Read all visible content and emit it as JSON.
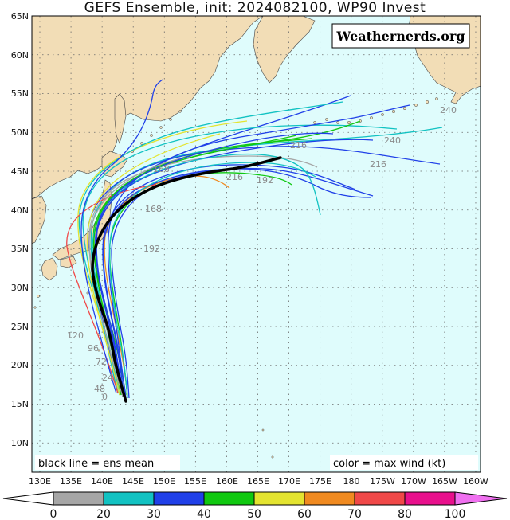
{
  "title": "GEFS Ensemble, init: 2024082100, WP90 Invest",
  "brand": "Weathernerds.org",
  "legend_left": "black line = ens mean",
  "legend_right": "color = max wind (kt)",
  "lat_labels": [
    "65N",
    "60N",
    "55N",
    "50N",
    "45N",
    "40N",
    "35N",
    "30N",
    "25N",
    "20N",
    "15N",
    "10N"
  ],
  "lon_labels": [
    "130E",
    "135E",
    "140E",
    "145E",
    "150E",
    "155E",
    "160E",
    "165E",
    "170E",
    "175E",
    "180",
    "175W",
    "170W",
    "165W",
    "160W"
  ],
  "colorbar": {
    "ticks": [
      "0",
      "20",
      "30",
      "40",
      "50",
      "60",
      "70",
      "80",
      "100"
    ],
    "colors": [
      "#ffffff",
      "#a6a6a6",
      "#12c2c2",
      "#2040e8",
      "#10c810",
      "#e4e430",
      "#f08a20",
      "#f04848",
      "#e8108c",
      "#f070f0"
    ]
  },
  "colors": {
    "ocean": "#dffcfc",
    "land": "#f2ddb6",
    "grid": "#6a6a6a",
    "mean": "#000000"
  },
  "hour_labels": [
    "240",
    "240",
    "216",
    "216",
    "216",
    "192",
    "192",
    "168",
    "168",
    "120",
    "96",
    "72",
    "48",
    "24",
    "0"
  ]
}
